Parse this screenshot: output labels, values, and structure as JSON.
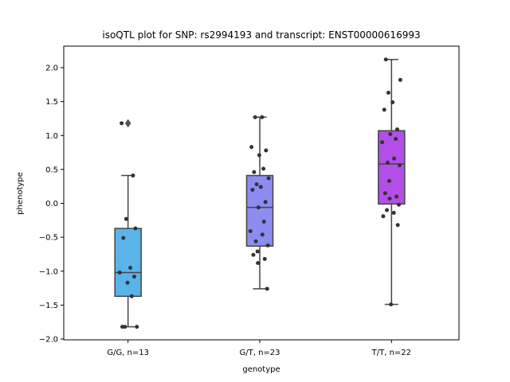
{
  "chart_data": {
    "type": "box",
    "title": "isoQTL plot for SNP: rs2994193 and transcript: ENST00000616993",
    "xlabel": "genotype",
    "ylabel": "phenotype",
    "ylim": [
      -2.02,
      2.3
    ],
    "yticks": [
      2.0,
      1.5,
      1.0,
      0.5,
      0.0,
      -0.5,
      -1.0,
      -1.5,
      -2.0
    ],
    "ytick_labels": [
      "2.0",
      "1.5",
      "1.0",
      "0.5",
      "0.0",
      "−0.5",
      "−1.0",
      "−1.5",
      "−2.0"
    ],
    "categories": [
      "G/G, n=13",
      "G/T, n=23",
      "T/T, n=22"
    ],
    "grid": false,
    "legend": "none",
    "series": [
      {
        "color": "#5ab4ea",
        "box": {
          "q1": -1.37,
          "median": -1.02,
          "q3": -0.37,
          "whisker_low": -1.82,
          "whisker_high": 0.41
        },
        "outliers": [
          1.18
        ],
        "points": [
          1.18,
          0.41,
          -0.23,
          -0.37,
          -0.51,
          -0.95,
          -1.02,
          -1.08,
          -1.17,
          -1.37,
          -1.82,
          -1.82,
          -1.82
        ]
      },
      {
        "color": "#8c8cf2",
        "box": {
          "q1": -0.63,
          "median": -0.06,
          "q3": 0.41,
          "whisker_low": -1.26,
          "whisker_high": 1.27
        },
        "outliers": [],
        "points": [
          1.27,
          0.83,
          0.78,
          0.71,
          0.51,
          0.46,
          0.37,
          0.28,
          0.24,
          0.2,
          0.02,
          -0.06,
          -0.27,
          -0.41,
          -0.46,
          -0.56,
          -0.62,
          -0.71,
          -0.76,
          -0.82,
          -0.88,
          -1.26,
          1.27
        ]
      },
      {
        "color": "#b34ee8",
        "box": {
          "q1": -0.01,
          "median": 0.58,
          "q3": 1.07,
          "whisker_low": -1.49,
          "whisker_high": 2.12
        },
        "outliers": [],
        "points": [
          2.12,
          1.82,
          1.63,
          1.49,
          1.38,
          1.09,
          1.02,
          0.95,
          0.9,
          0.66,
          0.6,
          0.56,
          0.33,
          0.15,
          0.1,
          0.07,
          -0.02,
          -0.1,
          -0.14,
          -0.19,
          -0.32,
          -1.49
        ]
      }
    ]
  }
}
